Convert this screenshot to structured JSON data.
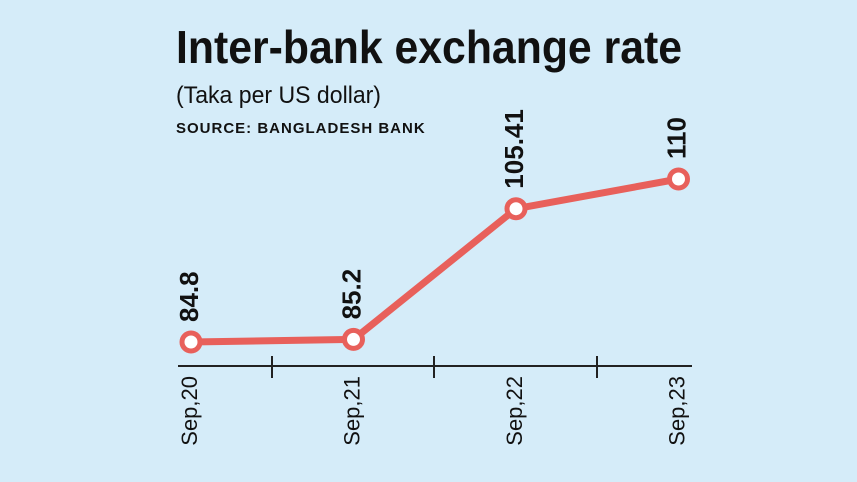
{
  "chart_data": {
    "type": "line",
    "title": "Inter-bank exchange rate",
    "subtitle": "(Taka per US dollar)",
    "source": "SOURCE: BANGLADESH BANK",
    "categories": [
      "Sep,20",
      "Sep,21",
      "Sep,22",
      "Sep,23"
    ],
    "values": [
      84.8,
      85.2,
      105.41,
      110
    ],
    "color": "#e8605b"
  }
}
